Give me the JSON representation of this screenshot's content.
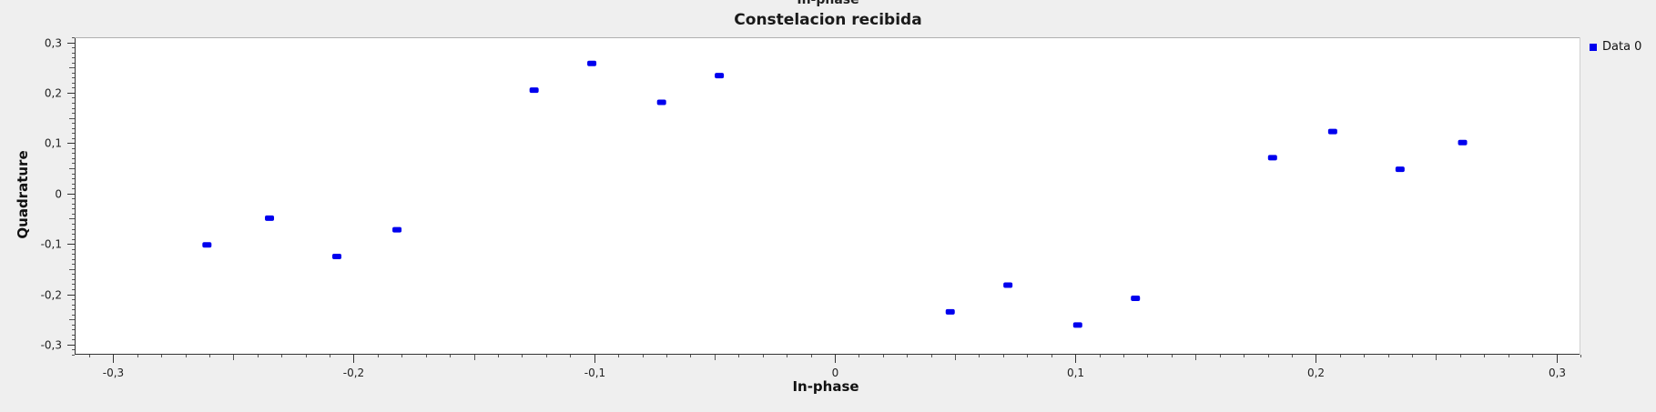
{
  "window": {
    "clipped_title": "In-phase"
  },
  "chart_data": {
    "type": "scatter",
    "title": "Constelacion recibida",
    "xlabel": "In-phase",
    "ylabel": "Quadrature",
    "xlim": [
      -0.316,
      0.31
    ],
    "ylim": [
      -0.32,
      0.31
    ],
    "x_ticks": [
      -0.3,
      -0.2,
      -0.1,
      0,
      0.1,
      0.2,
      0.3
    ],
    "x_tick_labels": [
      "-0,3",
      "-0,2",
      "-0,1",
      "0",
      "0,1",
      "0,2",
      "0,3"
    ],
    "y_ticks": [
      0.3,
      0.2,
      0.1,
      0,
      -0.1,
      -0.2,
      -0.3
    ],
    "y_tick_labels": [
      "0,3",
      "0,2",
      "0,1",
      "0",
      "-0,1",
      "-0,2",
      "-0,3"
    ],
    "grid": false,
    "legend_position": "top-right",
    "series": [
      {
        "name": "Data 0",
        "color": "#0000ee",
        "points": [
          [
            -0.261,
            -0.102
          ],
          [
            -0.235,
            -0.049
          ],
          [
            -0.207,
            -0.125
          ],
          [
            -0.182,
            -0.072
          ],
          [
            -0.125,
            0.205
          ],
          [
            -0.101,
            0.258
          ],
          [
            -0.072,
            0.181
          ],
          [
            -0.048,
            0.234
          ],
          [
            0.048,
            -0.235
          ],
          [
            0.072,
            -0.182
          ],
          [
            0.101,
            -0.261
          ],
          [
            0.125,
            -0.208
          ],
          [
            0.182,
            0.071
          ],
          [
            0.207,
            0.123
          ],
          [
            0.235,
            0.048
          ],
          [
            0.261,
            0.101
          ]
        ]
      }
    ]
  }
}
